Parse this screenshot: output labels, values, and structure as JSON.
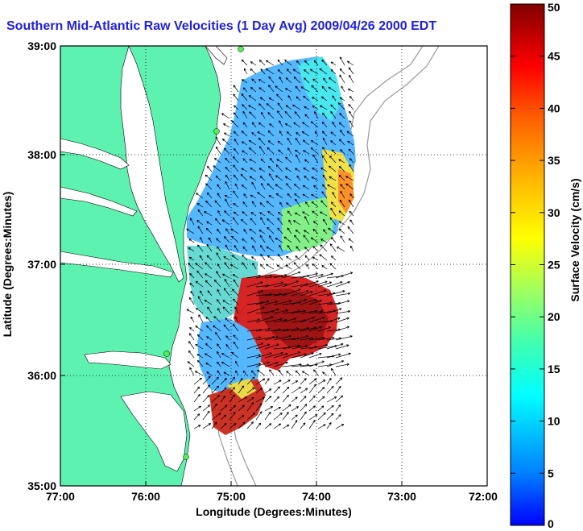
{
  "title": "Southern Mid-Atlantic Raw Velocities (1 Day Avg) 2009/04/26 2000 EDT",
  "x_axis": {
    "label": "Longitude (Degrees:Minutes)",
    "ticks": [
      "77:00",
      "76:00",
      "75:00",
      "74:00",
      "73:00",
      "72:00"
    ]
  },
  "y_axis": {
    "label": "Latitude (Degrees:Minutes)",
    "ticks": [
      "39:00",
      "38:00",
      "37:00",
      "36:00",
      "35:00"
    ]
  },
  "colorbar": {
    "label": "Surface Velocity (cm/s)",
    "ticks": [
      "0",
      "5",
      "10",
      "15",
      "20",
      "25",
      "30",
      "35",
      "40",
      "45",
      "50"
    ],
    "range": [
      0,
      50
    ]
  },
  "map": {
    "lon_range": [
      -77,
      -72
    ],
    "lat_range": [
      35,
      39
    ],
    "land_color": "#5ef2b0",
    "ocean_color": "#ffffff",
    "bathymetry_color": "#999999",
    "grid": true
  },
  "colors": {
    "title_text": "#1f1fe0",
    "frame": "#000000"
  }
}
